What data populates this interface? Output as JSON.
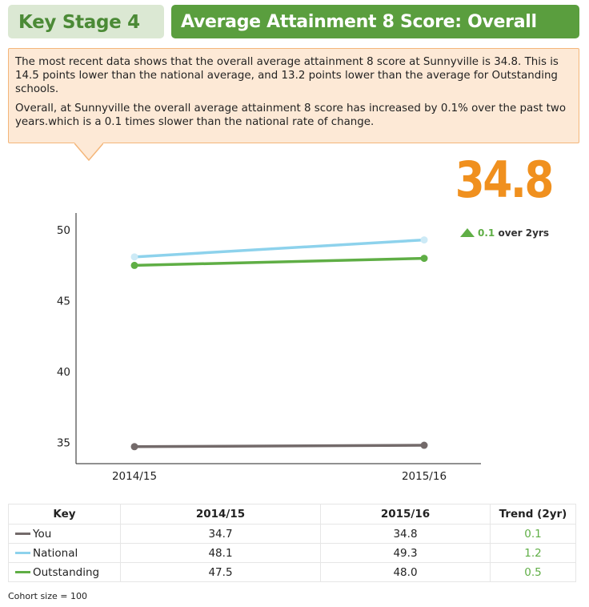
{
  "header": {
    "stage": "Key Stage 4",
    "title": "Average Attainment 8 Score: Overall"
  },
  "summary": {
    "paragraph1": "The most recent data shows that the overall average attainment 8 score at Sunnyville is 34.8. This is 14.5 points lower than the national average, and 13.2 points lower than the average for Outstanding schools.",
    "paragraph2": "Overall, at Sunnyville the overall average attainment 8 score has increased by 0.1% over the past two years.which is a 0.1 times slower than the national rate of change."
  },
  "headline": {
    "value": "34.8",
    "change": "0.1",
    "change_label": "over 2yrs"
  },
  "colors": {
    "you": "#736a6a",
    "national": "#8dd2ec",
    "outstanding": "#5fae45",
    "accent": "#f0901e"
  },
  "chart_data": {
    "type": "line",
    "categories": [
      "2014/15",
      "2015/16"
    ],
    "series": [
      {
        "name": "You",
        "values": [
          34.7,
          34.8
        ]
      },
      {
        "name": "National",
        "values": [
          48.1,
          49.3
        ]
      },
      {
        "name": "Outstanding",
        "values": [
          47.5,
          48.0
        ]
      }
    ],
    "y_ticks": [
      35,
      40,
      45,
      50
    ],
    "ylim": [
      33.5,
      51.2
    ],
    "title": "",
    "xlabel": "",
    "ylabel": ""
  },
  "key_table": {
    "headers": [
      "Key",
      "2014/15",
      "2015/16",
      "Trend (2yr)"
    ],
    "rows": [
      {
        "label": "You",
        "v1": "34.7",
        "v2": "34.8",
        "trend": "0.1"
      },
      {
        "label": "National",
        "v1": "48.1",
        "v2": "49.3",
        "trend": "1.2"
      },
      {
        "label": "Outstanding",
        "v1": "47.5",
        "v2": "48.0",
        "trend": "0.5"
      }
    ]
  },
  "footer": {
    "cohort": "Cohort size = 100"
  }
}
